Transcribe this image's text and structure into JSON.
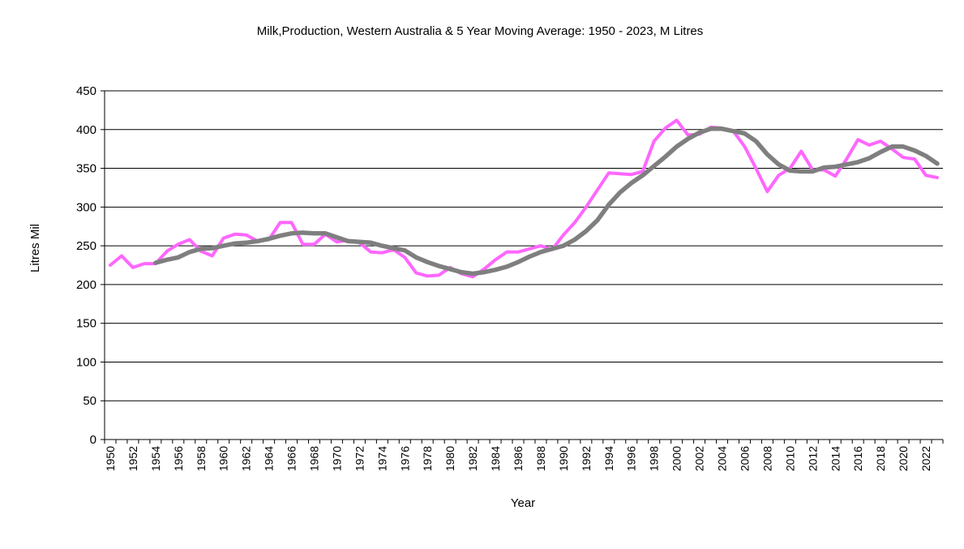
{
  "chart_data": {
    "type": "line",
    "title": "Milk,Production, Western Australia & 5 Year Moving Average: 1950 - 2023, M Litres",
    "xlabel": "Year",
    "ylabel": "Litres Mil",
    "ylim": [
      0,
      450
    ],
    "yticks": [
      "0",
      "50",
      "100",
      "150",
      "200",
      "250",
      "300",
      "350",
      "400",
      "450"
    ],
    "x_start": 1950,
    "x_end": 2023,
    "x_tick_labels": [
      "1950",
      "1952",
      "1954",
      "1956",
      "1958",
      "1960",
      "1962",
      "1964",
      "1966",
      "1968",
      "1970",
      "1972",
      "1974",
      "1976",
      "1978",
      "1980",
      "1982",
      "1984",
      "1986",
      "1988",
      "1990",
      "1992",
      "1994",
      "1996",
      "1998",
      "2000",
      "2002",
      "2004",
      "2006",
      "2008",
      "2010",
      "2012",
      "2014",
      "2016",
      "2018",
      "2020",
      "2022"
    ],
    "grid": "horizontal",
    "legend": "none",
    "series": [
      {
        "color": "#ff66ff",
        "x": [
          1950,
          1951,
          1952,
          1953,
          1954,
          1955,
          1956,
          1957,
          1958,
          1959,
          1960,
          1961,
          1962,
          1963,
          1964,
          1965,
          1966,
          1967,
          1968,
          1969,
          1970,
          1971,
          1972,
          1973,
          1974,
          1975,
          1976,
          1977,
          1978,
          1979,
          1980,
          1981,
          1982,
          1983,
          1984,
          1985,
          1986,
          1987,
          1988,
          1989,
          1990,
          1991,
          1992,
          1993,
          1994,
          1995,
          1996,
          1997,
          1998,
          1999,
          2000,
          2001,
          2002,
          2003,
          2004,
          2005,
          2006,
          2007,
          2008,
          2009,
          2010,
          2011,
          2012,
          2013,
          2014,
          2015,
          2016,
          2017,
          2018,
          2019,
          2020,
          2021,
          2022,
          2023
        ],
        "values": [
          225,
          237,
          222,
          227,
          227,
          243,
          252,
          258,
          243,
          237,
          260,
          265,
          264,
          256,
          258,
          280,
          280,
          252,
          252,
          265,
          255,
          257,
          254,
          242,
          241,
          245,
          235,
          215,
          211,
          212,
          222,
          214,
          210,
          220,
          232,
          242,
          242,
          246,
          250,
          245,
          264,
          280,
          300,
          322,
          344,
          343,
          342,
          346,
          385,
          402,
          412,
          393,
          394,
          403,
          402,
          398,
          378,
          350,
          320,
          341,
          350,
          372,
          348,
          348,
          340,
          362,
          387,
          380,
          385,
          375,
          364,
          362,
          341,
          338
        ]
      },
      {
        "color": "#7f7f7f",
        "x": [
          1954,
          1955,
          1956,
          1957,
          1958,
          1959,
          1960,
          1961,
          1962,
          1963,
          1964,
          1965,
          1966,
          1967,
          1968,
          1969,
          1970,
          1971,
          1972,
          1973,
          1974,
          1975,
          1976,
          1977,
          1978,
          1979,
          1980,
          1981,
          1982,
          1983,
          1984,
          1985,
          1986,
          1987,
          1988,
          1989,
          1990,
          1991,
          1992,
          1993,
          1994,
          1995,
          1996,
          1997,
          1998,
          1999,
          2000,
          2001,
          2002,
          2003,
          2004,
          2005,
          2006,
          2007,
          2008,
          2009,
          2010,
          2011,
          2012,
          2013,
          2014,
          2015,
          2016,
          2017,
          2018,
          2019,
          2020,
          2021,
          2022,
          2023
        ],
        "values": [
          228,
          232,
          235,
          242,
          246,
          247,
          250,
          253,
          254,
          256,
          259,
          263,
          266,
          267,
          266,
          266,
          261,
          256,
          255,
          254,
          250,
          247,
          244,
          235,
          229,
          224,
          220,
          216,
          214,
          216,
          219,
          223,
          229,
          236,
          242,
          246,
          250,
          258,
          269,
          283,
          303,
          319,
          331,
          341,
          353,
          365,
          378,
          388,
          396,
          401,
          401,
          398,
          395,
          385,
          368,
          355,
          347,
          346,
          346,
          351,
          352,
          355,
          358,
          363,
          371,
          378,
          378,
          373,
          366,
          356
        ]
      }
    ]
  }
}
